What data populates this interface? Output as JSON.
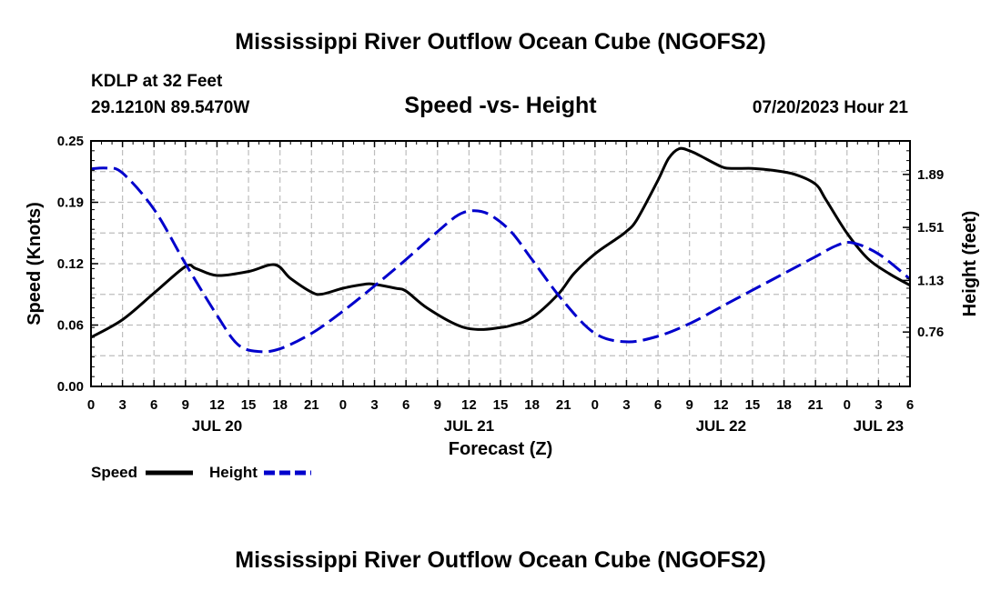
{
  "header": {
    "title": "Mississippi River Outflow Ocean Cube (NGOFS2)",
    "station": "KDLP at 32 Feet",
    "coords": "29.1210N  89.5470W",
    "chart_title": "Speed -vs- Height",
    "date": "07/20/2023 Hour 21"
  },
  "footer": {
    "title": "Mississippi River Outflow Ocean Cube (NGOFS2)"
  },
  "legend": {
    "speed_label": "Speed",
    "height_label": "Height"
  },
  "colors": {
    "speed": "#000000",
    "height": "#0000cc",
    "grid": "#bdbdbd"
  },
  "chart_data": {
    "type": "line",
    "title": "Speed -vs- Height",
    "xlabel": "Forecast (Z)",
    "ylabel_left": "Speed (Knots)",
    "ylabel_right": "Height (feet)",
    "x_unit": "hours from 00Z JUL 20",
    "xlim": [
      0,
      78
    ],
    "ylim_left": [
      0,
      0.25
    ],
    "ylim_right": [
      0.37,
      2.13
    ],
    "yticks_left": [
      "0.00",
      "0.06",
      "0.12",
      "0.19",
      "0.25"
    ],
    "yticks_left_values": [
      0,
      0.0625,
      0.125,
      0.1875,
      0.25
    ],
    "yticks_right": [
      "0.76",
      "1.13",
      "1.51",
      "1.89"
    ],
    "yticks_right_values": [
      0.76,
      1.13,
      1.51,
      1.89
    ],
    "xticks": [
      "0",
      "3",
      "6",
      "9",
      "12",
      "15",
      "18",
      "21",
      "0",
      "3",
      "6",
      "9",
      "12",
      "15",
      "18",
      "21",
      "0",
      "3",
      "6",
      "9",
      "12",
      "15",
      "18",
      "21",
      "0",
      "3",
      "6"
    ],
    "day_labels": [
      {
        "label": "JUL 20",
        "x": 12
      },
      {
        "label": "JUL 21",
        "x": 36
      },
      {
        "label": "JUL 22",
        "x": 60
      },
      {
        "label": "JUL 23",
        "x": 75
      }
    ],
    "series": [
      {
        "name": "Speed",
        "axis": "left",
        "x": [
          0,
          3,
          6,
          9,
          10,
          12,
          15,
          17.5,
          19,
          21,
          22,
          24,
          26,
          27,
          29,
          30,
          32,
          35,
          37,
          39,
          40,
          42,
          44.5,
          46,
          48,
          50,
          51,
          52,
          54,
          55,
          56,
          57,
          58,
          60,
          61,
          63,
          65,
          67,
          69,
          70,
          72,
          74,
          76,
          78
        ],
        "values": [
          0.05,
          0.068,
          0.095,
          0.122,
          0.12,
          0.113,
          0.117,
          0.124,
          0.11,
          0.096,
          0.094,
          0.1,
          0.104,
          0.104,
          0.1,
          0.097,
          0.08,
          0.062,
          0.058,
          0.06,
          0.062,
          0.07,
          0.094,
          0.115,
          0.135,
          0.15,
          0.158,
          0.17,
          0.21,
          0.232,
          0.242,
          0.24,
          0.235,
          0.224,
          0.222,
          0.222,
          0.22,
          0.216,
          0.206,
          0.19,
          0.156,
          0.13,
          0.115,
          0.103
        ]
      },
      {
        "name": "Height",
        "axis": "right",
        "x": [
          0,
          1.5,
          3,
          6,
          9,
          12,
          14,
          16,
          18,
          21,
          24,
          27,
          30,
          33,
          35,
          36.5,
          38,
          40,
          42,
          45,
          48,
          51,
          54,
          57,
          60,
          63,
          66,
          69,
          71,
          72.5,
          75,
          78
        ],
        "values": [
          1.93,
          1.935,
          1.9,
          1.64,
          1.25,
          0.88,
          0.67,
          0.62,
          0.64,
          0.75,
          0.91,
          1.09,
          1.28,
          1.48,
          1.6,
          1.63,
          1.6,
          1.48,
          1.28,
          0.98,
          0.75,
          0.69,
          0.73,
          0.82,
          0.94,
          1.06,
          1.18,
          1.3,
          1.38,
          1.4,
          1.32,
          1.14
        ]
      }
    ]
  }
}
